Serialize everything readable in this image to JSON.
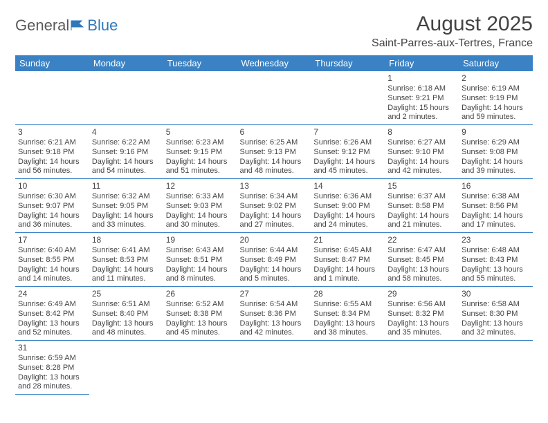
{
  "logo": {
    "general": "General",
    "blue": "Blue"
  },
  "header": {
    "month_title": "August 2025",
    "location": "Saint-Parres-aux-Tertres, France"
  },
  "colors": {
    "header_bg": "#3a82c4",
    "header_text": "#ffffff",
    "rule": "#3a82c4",
    "body_text": "#444444",
    "logo_gray": "#5a5a5a",
    "logo_blue": "#2f77bb",
    "page_bg": "#ffffff"
  },
  "daynames": [
    "Sunday",
    "Monday",
    "Tuesday",
    "Wednesday",
    "Thursday",
    "Friday",
    "Saturday"
  ],
  "weeks": [
    [
      null,
      null,
      null,
      null,
      null,
      {
        "n": "1",
        "sr": "Sunrise: 6:18 AM",
        "ss": "Sunset: 9:21 PM",
        "d1": "Daylight: 15 hours",
        "d2": "and 2 minutes."
      },
      {
        "n": "2",
        "sr": "Sunrise: 6:19 AM",
        "ss": "Sunset: 9:19 PM",
        "d1": "Daylight: 14 hours",
        "d2": "and 59 minutes."
      }
    ],
    [
      {
        "n": "3",
        "sr": "Sunrise: 6:21 AM",
        "ss": "Sunset: 9:18 PM",
        "d1": "Daylight: 14 hours",
        "d2": "and 56 minutes."
      },
      {
        "n": "4",
        "sr": "Sunrise: 6:22 AM",
        "ss": "Sunset: 9:16 PM",
        "d1": "Daylight: 14 hours",
        "d2": "and 54 minutes."
      },
      {
        "n": "5",
        "sr": "Sunrise: 6:23 AM",
        "ss": "Sunset: 9:15 PM",
        "d1": "Daylight: 14 hours",
        "d2": "and 51 minutes."
      },
      {
        "n": "6",
        "sr": "Sunrise: 6:25 AM",
        "ss": "Sunset: 9:13 PM",
        "d1": "Daylight: 14 hours",
        "d2": "and 48 minutes."
      },
      {
        "n": "7",
        "sr": "Sunrise: 6:26 AM",
        "ss": "Sunset: 9:12 PM",
        "d1": "Daylight: 14 hours",
        "d2": "and 45 minutes."
      },
      {
        "n": "8",
        "sr": "Sunrise: 6:27 AM",
        "ss": "Sunset: 9:10 PM",
        "d1": "Daylight: 14 hours",
        "d2": "and 42 minutes."
      },
      {
        "n": "9",
        "sr": "Sunrise: 6:29 AM",
        "ss": "Sunset: 9:08 PM",
        "d1": "Daylight: 14 hours",
        "d2": "and 39 minutes."
      }
    ],
    [
      {
        "n": "10",
        "sr": "Sunrise: 6:30 AM",
        "ss": "Sunset: 9:07 PM",
        "d1": "Daylight: 14 hours",
        "d2": "and 36 minutes."
      },
      {
        "n": "11",
        "sr": "Sunrise: 6:32 AM",
        "ss": "Sunset: 9:05 PM",
        "d1": "Daylight: 14 hours",
        "d2": "and 33 minutes."
      },
      {
        "n": "12",
        "sr": "Sunrise: 6:33 AM",
        "ss": "Sunset: 9:03 PM",
        "d1": "Daylight: 14 hours",
        "d2": "and 30 minutes."
      },
      {
        "n": "13",
        "sr": "Sunrise: 6:34 AM",
        "ss": "Sunset: 9:02 PM",
        "d1": "Daylight: 14 hours",
        "d2": "and 27 minutes."
      },
      {
        "n": "14",
        "sr": "Sunrise: 6:36 AM",
        "ss": "Sunset: 9:00 PM",
        "d1": "Daylight: 14 hours",
        "d2": "and 24 minutes."
      },
      {
        "n": "15",
        "sr": "Sunrise: 6:37 AM",
        "ss": "Sunset: 8:58 PM",
        "d1": "Daylight: 14 hours",
        "d2": "and 21 minutes."
      },
      {
        "n": "16",
        "sr": "Sunrise: 6:38 AM",
        "ss": "Sunset: 8:56 PM",
        "d1": "Daylight: 14 hours",
        "d2": "and 17 minutes."
      }
    ],
    [
      {
        "n": "17",
        "sr": "Sunrise: 6:40 AM",
        "ss": "Sunset: 8:55 PM",
        "d1": "Daylight: 14 hours",
        "d2": "and 14 minutes."
      },
      {
        "n": "18",
        "sr": "Sunrise: 6:41 AM",
        "ss": "Sunset: 8:53 PM",
        "d1": "Daylight: 14 hours",
        "d2": "and 11 minutes."
      },
      {
        "n": "19",
        "sr": "Sunrise: 6:43 AM",
        "ss": "Sunset: 8:51 PM",
        "d1": "Daylight: 14 hours",
        "d2": "and 8 minutes."
      },
      {
        "n": "20",
        "sr": "Sunrise: 6:44 AM",
        "ss": "Sunset: 8:49 PM",
        "d1": "Daylight: 14 hours",
        "d2": "and 5 minutes."
      },
      {
        "n": "21",
        "sr": "Sunrise: 6:45 AM",
        "ss": "Sunset: 8:47 PM",
        "d1": "Daylight: 14 hours",
        "d2": "and 1 minute."
      },
      {
        "n": "22",
        "sr": "Sunrise: 6:47 AM",
        "ss": "Sunset: 8:45 PM",
        "d1": "Daylight: 13 hours",
        "d2": "and 58 minutes."
      },
      {
        "n": "23",
        "sr": "Sunrise: 6:48 AM",
        "ss": "Sunset: 8:43 PM",
        "d1": "Daylight: 13 hours",
        "d2": "and 55 minutes."
      }
    ],
    [
      {
        "n": "24",
        "sr": "Sunrise: 6:49 AM",
        "ss": "Sunset: 8:42 PM",
        "d1": "Daylight: 13 hours",
        "d2": "and 52 minutes."
      },
      {
        "n": "25",
        "sr": "Sunrise: 6:51 AM",
        "ss": "Sunset: 8:40 PM",
        "d1": "Daylight: 13 hours",
        "d2": "and 48 minutes."
      },
      {
        "n": "26",
        "sr": "Sunrise: 6:52 AM",
        "ss": "Sunset: 8:38 PM",
        "d1": "Daylight: 13 hours",
        "d2": "and 45 minutes."
      },
      {
        "n": "27",
        "sr": "Sunrise: 6:54 AM",
        "ss": "Sunset: 8:36 PM",
        "d1": "Daylight: 13 hours",
        "d2": "and 42 minutes."
      },
      {
        "n": "28",
        "sr": "Sunrise: 6:55 AM",
        "ss": "Sunset: 8:34 PM",
        "d1": "Daylight: 13 hours",
        "d2": "and 38 minutes."
      },
      {
        "n": "29",
        "sr": "Sunrise: 6:56 AM",
        "ss": "Sunset: 8:32 PM",
        "d1": "Daylight: 13 hours",
        "d2": "and 35 minutes."
      },
      {
        "n": "30",
        "sr": "Sunrise: 6:58 AM",
        "ss": "Sunset: 8:30 PM",
        "d1": "Daylight: 13 hours",
        "d2": "and 32 minutes."
      }
    ],
    [
      {
        "n": "31",
        "sr": "Sunrise: 6:59 AM",
        "ss": "Sunset: 8:28 PM",
        "d1": "Daylight: 13 hours",
        "d2": "and 28 minutes."
      },
      null,
      null,
      null,
      null,
      null,
      null
    ]
  ]
}
